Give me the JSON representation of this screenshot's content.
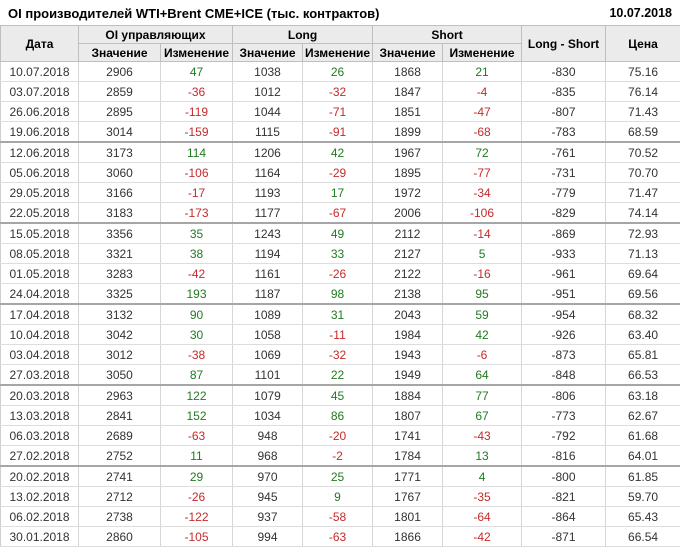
{
  "header": {
    "title": "OI производителей WTI+Brent CME+ICE (тыс. контрактов)",
    "date": "10.07.2018"
  },
  "table": {
    "columns": {
      "date": "Дата",
      "oi_group": "OI управляющих",
      "long_group": "Long",
      "short_group": "Short",
      "value": "Значение",
      "change": "Изменение",
      "long_short": "Long - Short",
      "price": "Цена"
    },
    "col_keys": [
      "date-cell",
      "oi-value-cell",
      "oi-change-cell",
      "long-value-cell",
      "long-change-cell",
      "short-value-cell",
      "short-change-cell",
      "long-short-cell",
      "price-cell"
    ],
    "change_col_indexes": [
      2,
      4,
      6
    ],
    "group_size": 4,
    "rows": [
      [
        "10.07.2018",
        2906,
        47,
        1038,
        26,
        1868,
        21,
        -830,
        "75.16"
      ],
      [
        "03.07.2018",
        2859,
        -36,
        1012,
        -32,
        1847,
        -4,
        -835,
        "76.14"
      ],
      [
        "26.06.2018",
        2895,
        -119,
        1044,
        -71,
        1851,
        -47,
        -807,
        "71.43"
      ],
      [
        "19.06.2018",
        3014,
        -159,
        1115,
        -91,
        1899,
        -68,
        -783,
        "68.59"
      ],
      [
        "12.06.2018",
        3173,
        114,
        1206,
        42,
        1967,
        72,
        -761,
        "70.52"
      ],
      [
        "05.06.2018",
        3060,
        -106,
        1164,
        -29,
        1895,
        -77,
        -731,
        "70.70"
      ],
      [
        "29.05.2018",
        3166,
        -17,
        1193,
        17,
        1972,
        -34,
        -779,
        "71.47"
      ],
      [
        "22.05.2018",
        3183,
        -173,
        1177,
        -67,
        2006,
        -106,
        -829,
        "74.14"
      ],
      [
        "15.05.2018",
        3356,
        35,
        1243,
        49,
        2112,
        -14,
        -869,
        "72.93"
      ],
      [
        "08.05.2018",
        3321,
        38,
        1194,
        33,
        2127,
        5,
        -933,
        "71.13"
      ],
      [
        "01.05.2018",
        3283,
        -42,
        1161,
        -26,
        2122,
        -16,
        -961,
        "69.64"
      ],
      [
        "24.04.2018",
        3325,
        193,
        1187,
        98,
        2138,
        95,
        -951,
        "69.56"
      ],
      [
        "17.04.2018",
        3132,
        90,
        1089,
        31,
        2043,
        59,
        -954,
        "68.32"
      ],
      [
        "10.04.2018",
        3042,
        30,
        1058,
        -11,
        1984,
        42,
        -926,
        "63.40"
      ],
      [
        "03.04.2018",
        3012,
        -38,
        1069,
        -32,
        1943,
        -6,
        -873,
        "65.81"
      ],
      [
        "27.03.2018",
        3050,
        87,
        1101,
        22,
        1949,
        64,
        -848,
        "66.53"
      ],
      [
        "20.03.2018",
        2963,
        122,
        1079,
        45,
        1884,
        77,
        -806,
        "63.18"
      ],
      [
        "13.03.2018",
        2841,
        152,
        1034,
        86,
        1807,
        67,
        -773,
        "62.67"
      ],
      [
        "06.03.2018",
        2689,
        -63,
        948,
        -20,
        1741,
        -43,
        -792,
        "61.68"
      ],
      [
        "27.02.2018",
        2752,
        11,
        968,
        -2,
        1784,
        13,
        -816,
        "64.01"
      ],
      [
        "20.02.2018",
        2741,
        29,
        970,
        25,
        1771,
        4,
        -800,
        "61.85"
      ],
      [
        "13.02.2018",
        2712,
        -26,
        945,
        9,
        1767,
        -35,
        -821,
        "59.70"
      ],
      [
        "06.02.2018",
        2738,
        -122,
        937,
        -58,
        1801,
        -64,
        -864,
        "65.43"
      ],
      [
        "30.01.2018",
        2860,
        -105,
        994,
        -63,
        1866,
        -42,
        -871,
        "66.54"
      ]
    ]
  },
  "colors": {
    "positive": "#217a21",
    "negative": "#c42b2b",
    "header_bg": "#ebebeb",
    "border": "#bfbfbf",
    "group_border": "#a6a6a6"
  }
}
